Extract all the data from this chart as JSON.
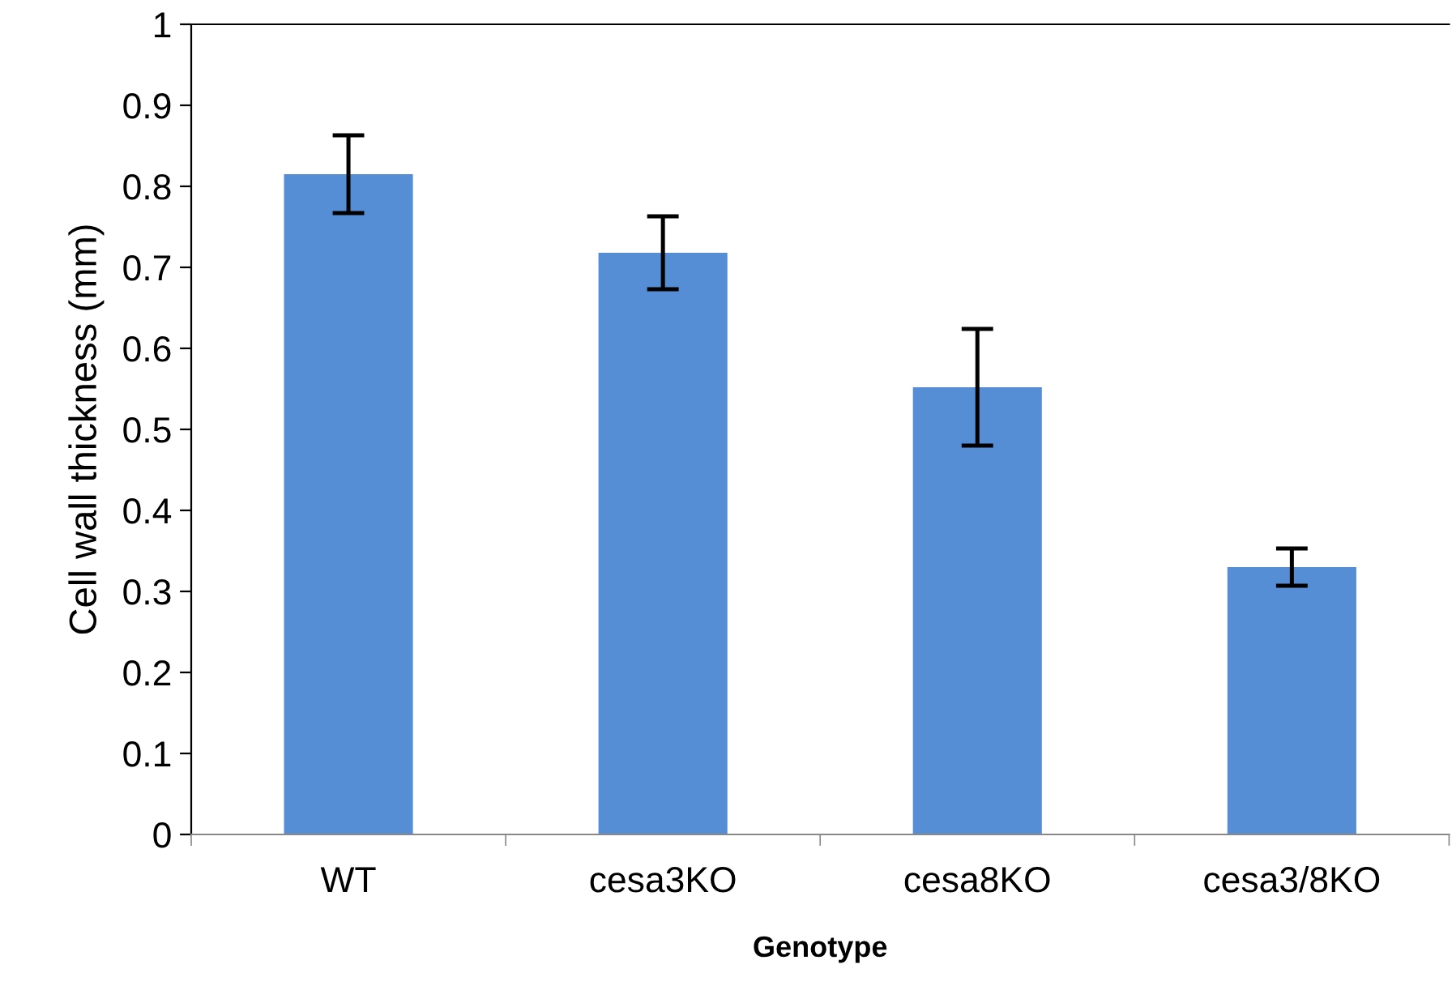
{
  "chart_data": {
    "type": "bar",
    "xlabel": "Genotype",
    "ylabel": "Cell wall thickness (mm)",
    "categories": [
      "WT",
      "cesa3KO",
      "cesa8KO",
      "cesa3/8KO"
    ],
    "values": [
      0.815,
      0.718,
      0.552,
      0.33
    ],
    "errors": [
      0.048,
      0.045,
      0.072,
      0.023
    ],
    "color": "#558ed5",
    "ylim": [
      0,
      1
    ],
    "yticks": [
      0,
      0.1,
      0.2,
      0.3,
      0.4,
      0.5,
      0.6,
      0.7,
      0.8,
      0.9,
      1
    ],
    "grid": false,
    "legend": false
  }
}
